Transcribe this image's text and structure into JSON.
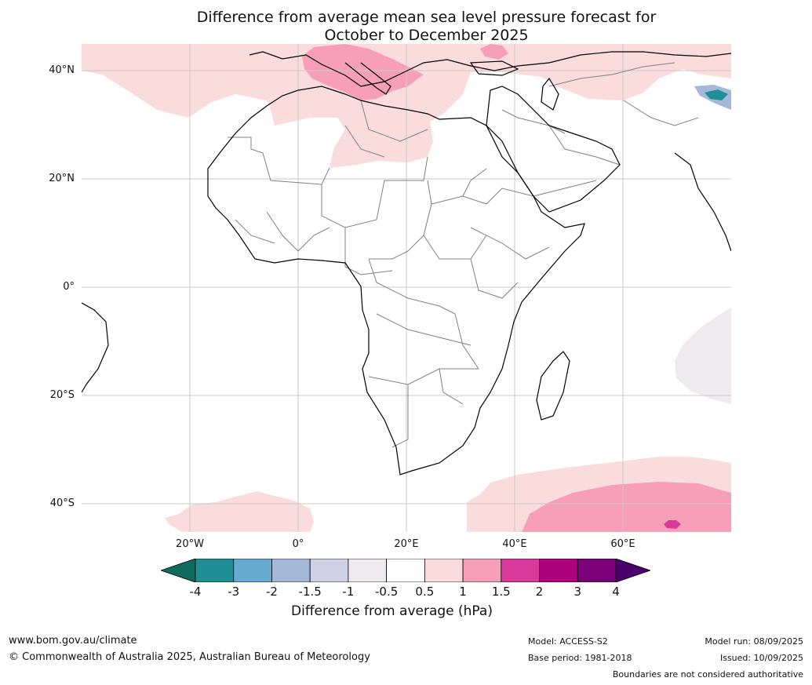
{
  "title": {
    "line1": "Difference from average mean sea level pressure forecast for",
    "line2": "October to December 2025"
  },
  "map": {
    "lat_labels": [
      "40°N",
      "20°N",
      "0°",
      "20°S",
      "40°S"
    ],
    "lon_labels": [
      "20°W",
      "0°",
      "20°E",
      "40°E",
      "60°E"
    ],
    "extent": {
      "lon_min": -40,
      "lon_max": 80,
      "lat_min": -45,
      "lat_max": 45
    },
    "colors": {
      "pink_light": "#fbdcdc",
      "pink_mid": "#f79fb9",
      "magenta": "#d8399a",
      "grey_light": "#efeaee",
      "coast": "#000000",
      "border": "#808080",
      "grid": "#c8c8c8"
    }
  },
  "colorbar": {
    "title": "Difference from average (hPa)",
    "ticks": [
      "-4",
      "-3",
      "-2",
      "-1.5",
      "-1",
      "-0.5",
      "0.5",
      "1",
      "1.5",
      "2",
      "3",
      "4"
    ],
    "colors": [
      "#106b5f",
      "#1f8f95",
      "#67a9cf",
      "#a5b8d9",
      "#cfd0e4",
      "#efeaee",
      "#ffffff",
      "#fbdcdc",
      "#f79fb9",
      "#d8399a",
      "#ae017e",
      "#7a0177",
      "#49006a"
    ]
  },
  "footer": {
    "website": "www.bom.gov.au/climate",
    "copyright": "© Commonwealth of Australia 2025, Australian Bureau of Meteorology",
    "model": "Model: ACCESS-S2",
    "base_period": "Base period: 1981-2018",
    "model_run": "Model run: 08/09/2025",
    "issued": "Issued: 10/09/2025",
    "disclaimer": "Boundaries are not considered authoritative"
  }
}
